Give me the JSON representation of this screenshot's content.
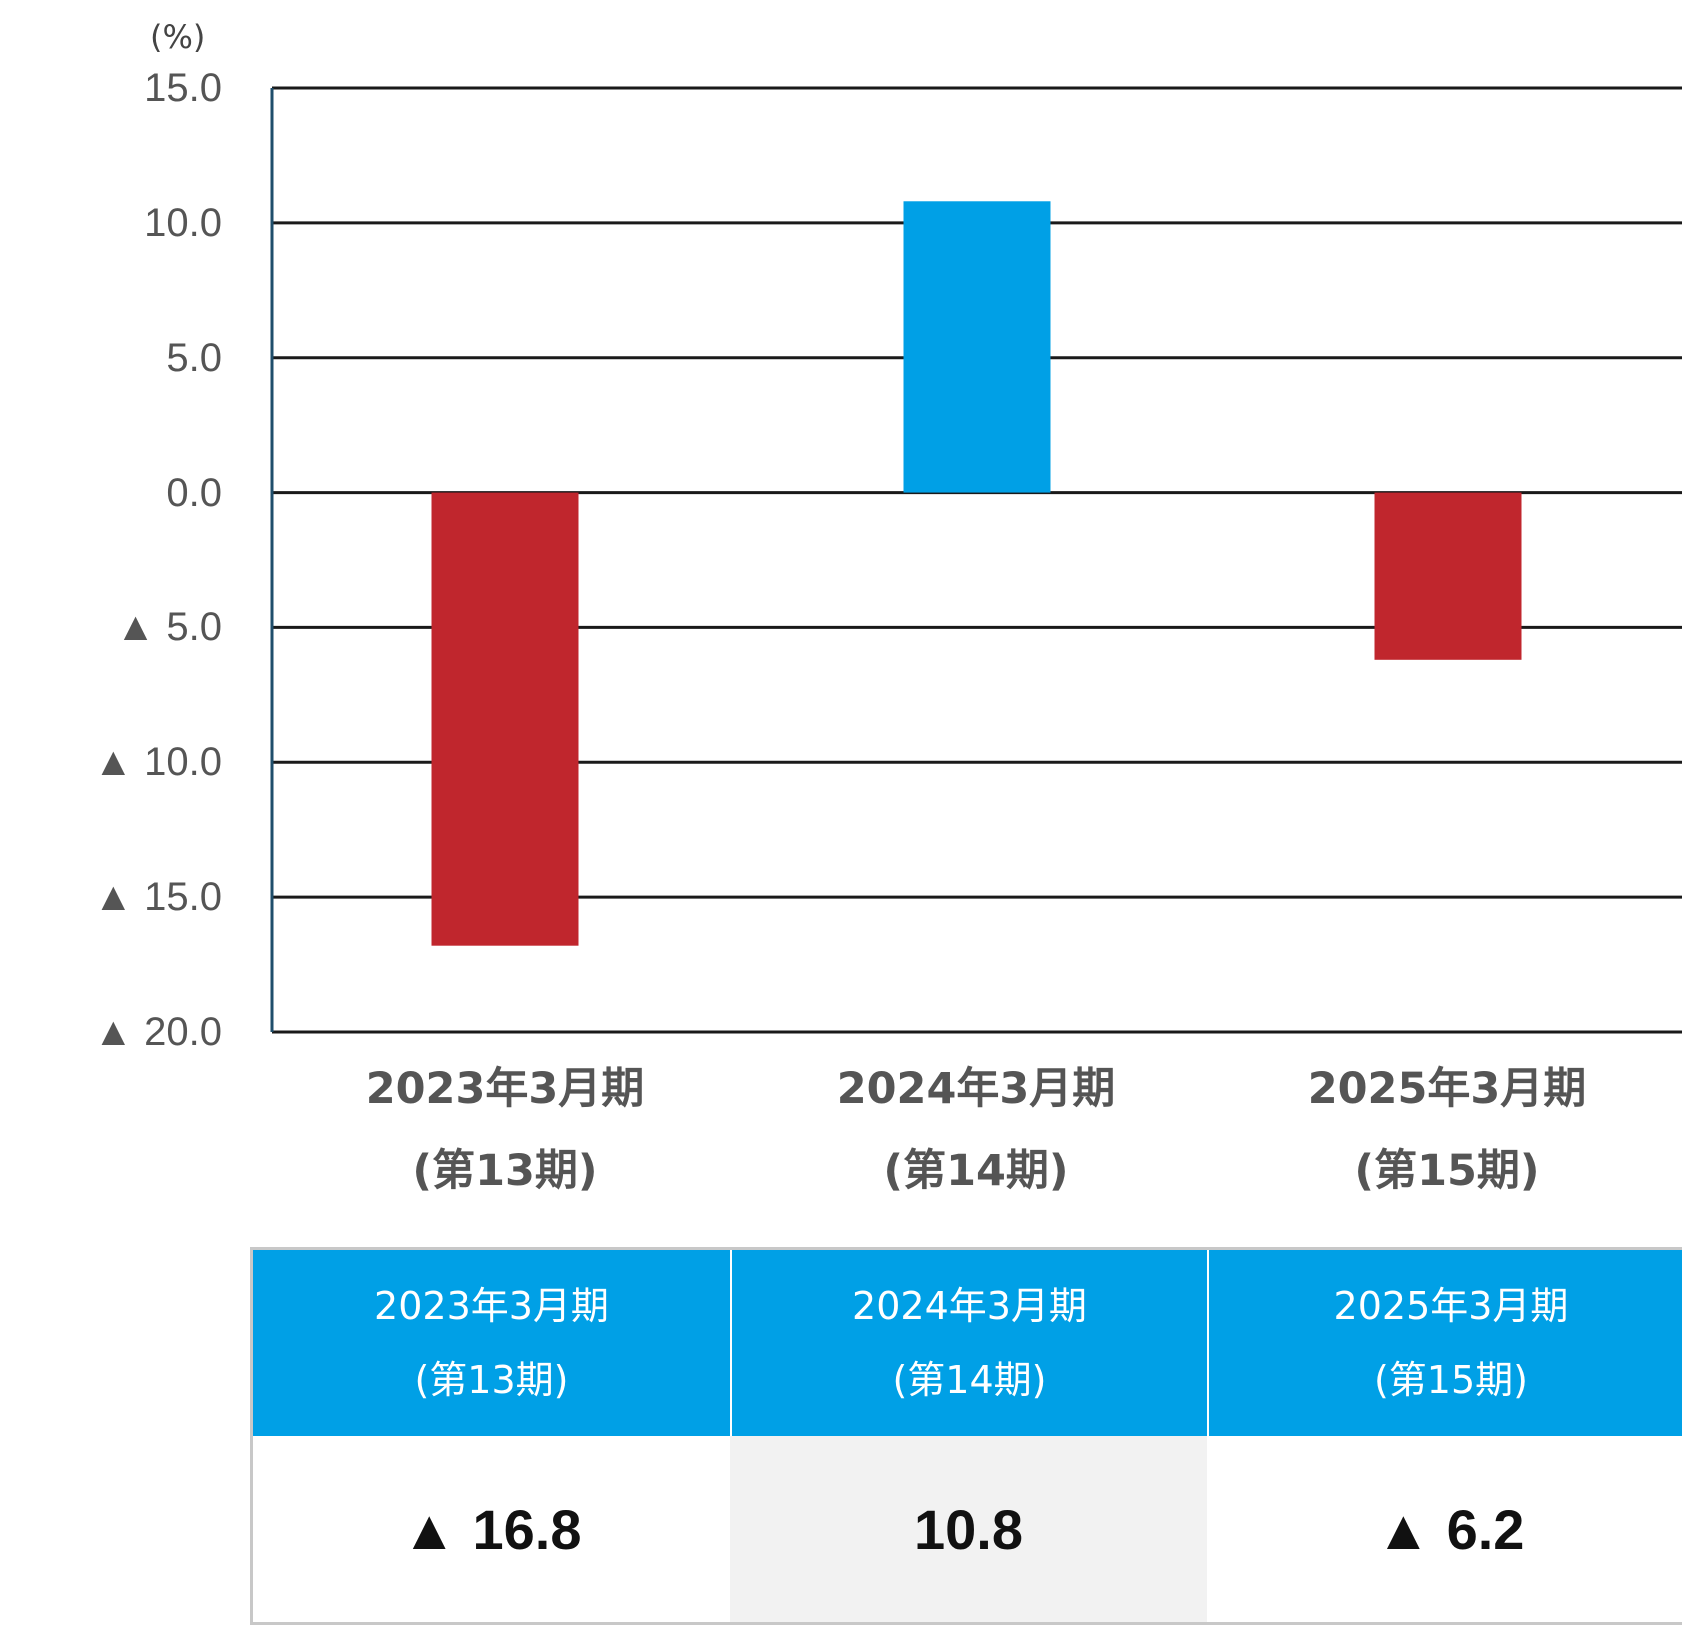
{
  "chart_data": {
    "type": "bar",
    "unit_label": "(%)",
    "categories": [
      {
        "line1": "2023年3月期",
        "line2": "(第13期)"
      },
      {
        "line1": "2024年3月期",
        "line2": "(第14期)"
      },
      {
        "line1": "2025年3月期",
        "line2": "(第15期)"
      }
    ],
    "values": [
      -16.8,
      10.8,
      -6.2
    ],
    "ylim": [
      -20,
      15
    ],
    "yticks": [
      15,
      10,
      5,
      0,
      -5,
      -10,
      -15,
      -20
    ],
    "ytick_labels": [
      "15.0",
      "10.0",
      "5.0",
      "0.0",
      "▲ 5.0",
      "▲ 10.0",
      "▲ 15.0",
      "▲ 20.0"
    ],
    "grid": true,
    "colors": {
      "positive": "#00a0e6",
      "negative": "#c0262d",
      "axis": "#1f4e6b",
      "grid": "#1a1a1a"
    }
  },
  "table": {
    "headers": [
      {
        "line1": "2023年3月期",
        "line2": "(第13期)"
      },
      {
        "line1": "2024年3月期",
        "line2": "(第14期)"
      },
      {
        "line1": "2025年3月期",
        "line2": "(第15期)"
      }
    ],
    "values": [
      "▲ 16.8",
      "10.8",
      "▲ 6.2"
    ],
    "header_color": "#00a0e6"
  }
}
